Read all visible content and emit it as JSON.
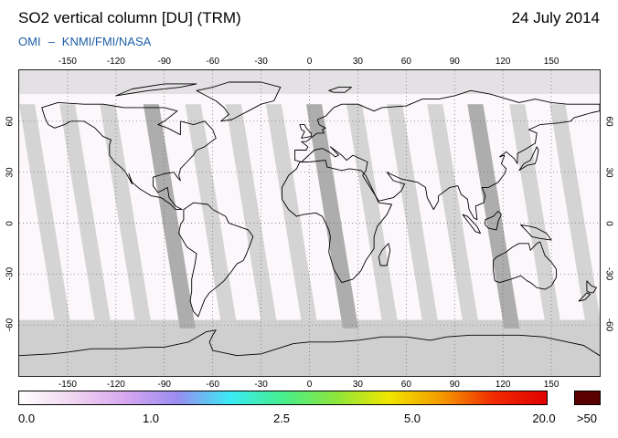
{
  "header": {
    "title": "SO2 vertical column [DU] (TRM)",
    "date": "24 July 2014",
    "credit_left": "OMI",
    "credit_dash": "–",
    "credit_right": "KNMI/FMI/NASA"
  },
  "map": {
    "projection": "equirectangular",
    "lon_range": [
      -180,
      180
    ],
    "lat_range": [
      -90,
      90
    ],
    "top_lon_ticks": [
      "-150",
      "-120",
      "-90",
      "-60",
      "-30",
      "0",
      "30",
      "60",
      "90",
      "120",
      "150"
    ],
    "bottom_lon_ticks": [
      "-150",
      "-120",
      "-90",
      "-60",
      "-30",
      "0",
      "30",
      "60",
      "90",
      "120",
      "150"
    ],
    "left_lat_ticks": [
      "60",
      "30",
      "0",
      "-30",
      "-60"
    ],
    "right_lat_ticks": [
      "60",
      "30",
      "0",
      "-30",
      "-60"
    ],
    "grid": true,
    "colors": {
      "background": "#fbf7fb",
      "no_data_swath": "#cfcfcf",
      "dark_swath": "#a9a9a9",
      "coastline": "#000000",
      "grid": "#6b6b6b"
    }
  },
  "colorbar": {
    "labels": [
      "0.0",
      "1.0",
      "2.5",
      "5.0",
      "20.0",
      ">50"
    ],
    "values": [
      0.0,
      1.0,
      2.5,
      5.0,
      20.0,
      50
    ],
    "gradient_colors": [
      "#ffffff",
      "#f1d6f0",
      "#d8a8f0",
      "#9a8cf0",
      "#3aeaf4",
      "#46ee8c",
      "#8ce63c",
      "#f0e600",
      "#f49a00",
      "#f02a00",
      "#e00000"
    ],
    "overflow_color": "#5a0000"
  }
}
